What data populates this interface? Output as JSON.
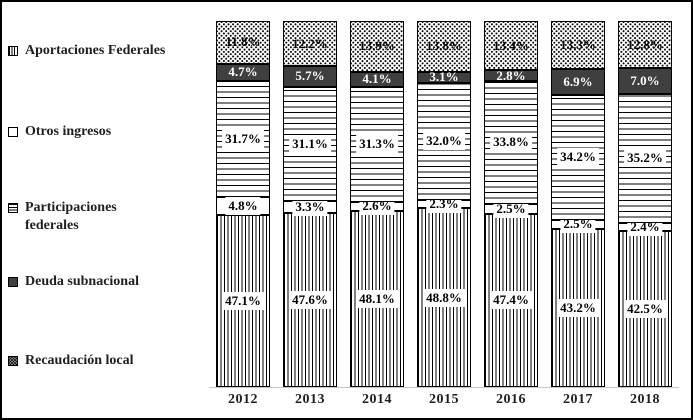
{
  "chart_data": {
    "type": "bar",
    "subtype": "stacked-percentage-column",
    "title": "",
    "xlabel": "",
    "ylabel": "",
    "value_suffix": "%",
    "label_format": "0.0%",
    "ylim": [
      0,
      100
    ],
    "grid": false,
    "legend_position": "left",
    "categories": [
      "2012",
      "2013",
      "2014",
      "2015",
      "2016",
      "2017",
      "2018"
    ],
    "series": [
      {
        "name": "Aportaciones Federales",
        "pattern": "vertical-stripes",
        "stack_position_from_bottom": 1,
        "values": [
          47.1,
          47.6,
          48.1,
          48.8,
          47.4,
          43.2,
          42.5
        ]
      },
      {
        "name": "Otros ingresos",
        "pattern": "solid-white",
        "stack_position_from_bottom": 2,
        "values": [
          4.8,
          3.3,
          2.6,
          2.3,
          2.5,
          2.5,
          2.4
        ]
      },
      {
        "name": "Participaciones federales",
        "pattern": "horizontal-stripes",
        "stack_position_from_bottom": 3,
        "values": [
          31.7,
          31.1,
          31.3,
          32.0,
          33.8,
          34.2,
          35.2
        ]
      },
      {
        "name": "Deuda subnacional",
        "pattern": "solid-dark",
        "stack_position_from_bottom": 4,
        "values": [
          4.7,
          5.7,
          4.1,
          3.1,
          2.8,
          6.9,
          7.0
        ]
      },
      {
        "name": "Recaudación local",
        "pattern": "dots",
        "stack_position_from_bottom": 5,
        "values": [
          11.8,
          12.2,
          13.9,
          13.8,
          13.4,
          13.3,
          12.8
        ]
      }
    ],
    "colors": {
      "pattern_foreground": "#000000",
      "solid_dark_fill": "#3f3f3f",
      "background": "#ffffff",
      "axis_line": "#c6c6c6",
      "text": "#1f1f1f",
      "frame_border": "#000000"
    }
  }
}
